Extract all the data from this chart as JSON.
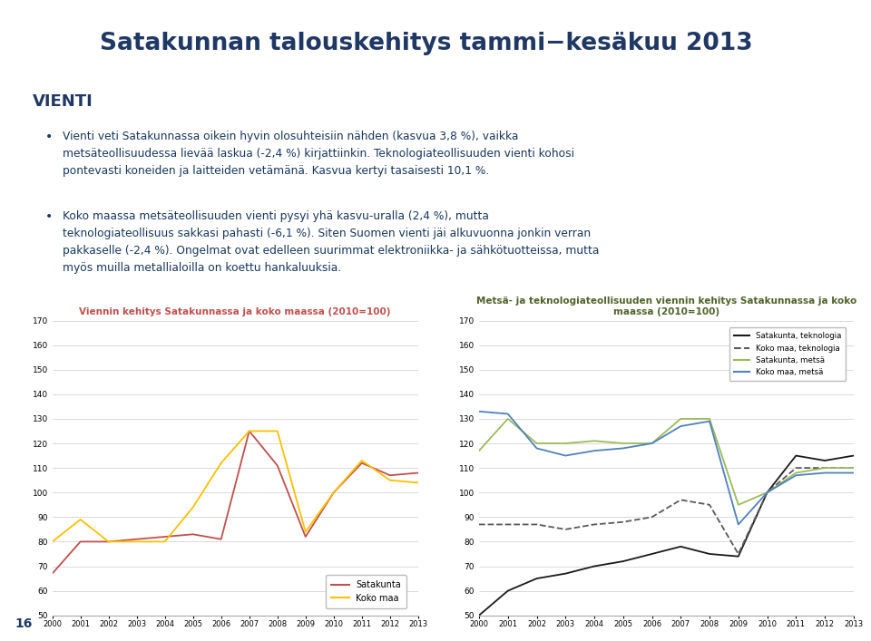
{
  "title": "Satakunnan talouskehitys tammi−kesäkuu 2013",
  "section_header": "VIENTI",
  "bullet1_line1": "Vienti veti Satakunnassa oikein hyvin olosuhteisiin nähden (kasvua 3,8 %), vaikka",
  "bullet1_line2": "metsäteollisuudessa lievää laskua (-2,4 %) kirjattiinkin. Teknologiateollisuuden vienti kohosi",
  "bullet1_line3": "pontevasti koneiden ja laitteiden vetämänä. Kasvua kertyi tasaisesti 10,1 %.",
  "bullet2_line1": "Koko maassa metsäteollisuuden vienti pysyi yhä kasvu-uralla (2,4 %), mutta",
  "bullet2_line2": "teknologiateollisuus sakkasi pahasti (-6,1 %). Siten Suomen vienti jäi alkuvuonna jonkin verran",
  "bullet2_line3": "pakkaselle (-2,4 %). Ongelmat ovat edelleen suurimmat elektroniikka- ja sähkötuotteissa, mutta",
  "bullet2_line4": "myös muilla metallialoilla on koettu hankaluuksia.",
  "chart1_title": "Viennin kehitys Satakunnassa ja koko maassa (2010=100)",
  "chart2_title_line1": "Metsä- ja teknologiateollisuuden viennin kehitys Satakunnassa ja koko",
  "chart2_title_line2": "maassa (2010=100)",
  "chart1_title_color": "#c0504d",
  "chart2_title_color": "#4f6228",
  "background_color": "#ffffff",
  "header_bg_color": "#dce6f1",
  "left_bar_color": "#c5d9f1",
  "page_number": "16",
  "ylim": [
    50,
    170
  ],
  "yticks": [
    50,
    60,
    70,
    80,
    90,
    100,
    110,
    120,
    130,
    140,
    150,
    160,
    170
  ],
  "years": [
    2000,
    2001,
    2002,
    2003,
    2004,
    2005,
    2006,
    2007,
    2008,
    2009,
    2010,
    2011,
    2012,
    2013
  ],
  "chart1_satakunta": [
    67,
    80,
    80,
    81,
    82,
    83,
    81,
    125,
    111,
    82,
    100,
    112,
    107,
    108
  ],
  "chart1_kokomaa": [
    80,
    89,
    80,
    80,
    80,
    94,
    112,
    125,
    125,
    84,
    100,
    113,
    105,
    104
  ],
  "chart1_satakunta_color": "#c0504d",
  "chart1_kokomaa_color": "#ffc000",
  "chart2_sat_tek": [
    50,
    60,
    65,
    67,
    70,
    72,
    75,
    78,
    75,
    74,
    100,
    115,
    113,
    115
  ],
  "chart2_kok_tek": [
    87,
    87,
    87,
    85,
    87,
    88,
    90,
    97,
    95,
    75,
    100,
    110,
    110,
    110
  ],
  "chart2_sat_met": [
    117,
    130,
    120,
    120,
    121,
    120,
    120,
    130,
    130,
    95,
    100,
    108,
    110,
    110
  ],
  "chart2_kok_met": [
    133,
    132,
    118,
    115,
    117,
    118,
    120,
    127,
    129,
    87,
    100,
    107,
    108,
    108
  ],
  "chart2_sat_tek_color": "#1a1a1a",
  "chart2_kok_tek_color": "#595959",
  "chart2_sat_met_color": "#9bbb59",
  "chart2_kok_met_color": "#4f81bd",
  "title_color": "#1f3864",
  "header_color": "#1f3864",
  "bullet_text_color": "#17375e",
  "legend1_labels": [
    "Satakunta",
    "Koko maa"
  ],
  "legend2_labels": [
    "Satakunta, teknologia",
    "Koko maa, teknologia",
    "Satakunta, metsä",
    "Koko maa, metsä"
  ]
}
